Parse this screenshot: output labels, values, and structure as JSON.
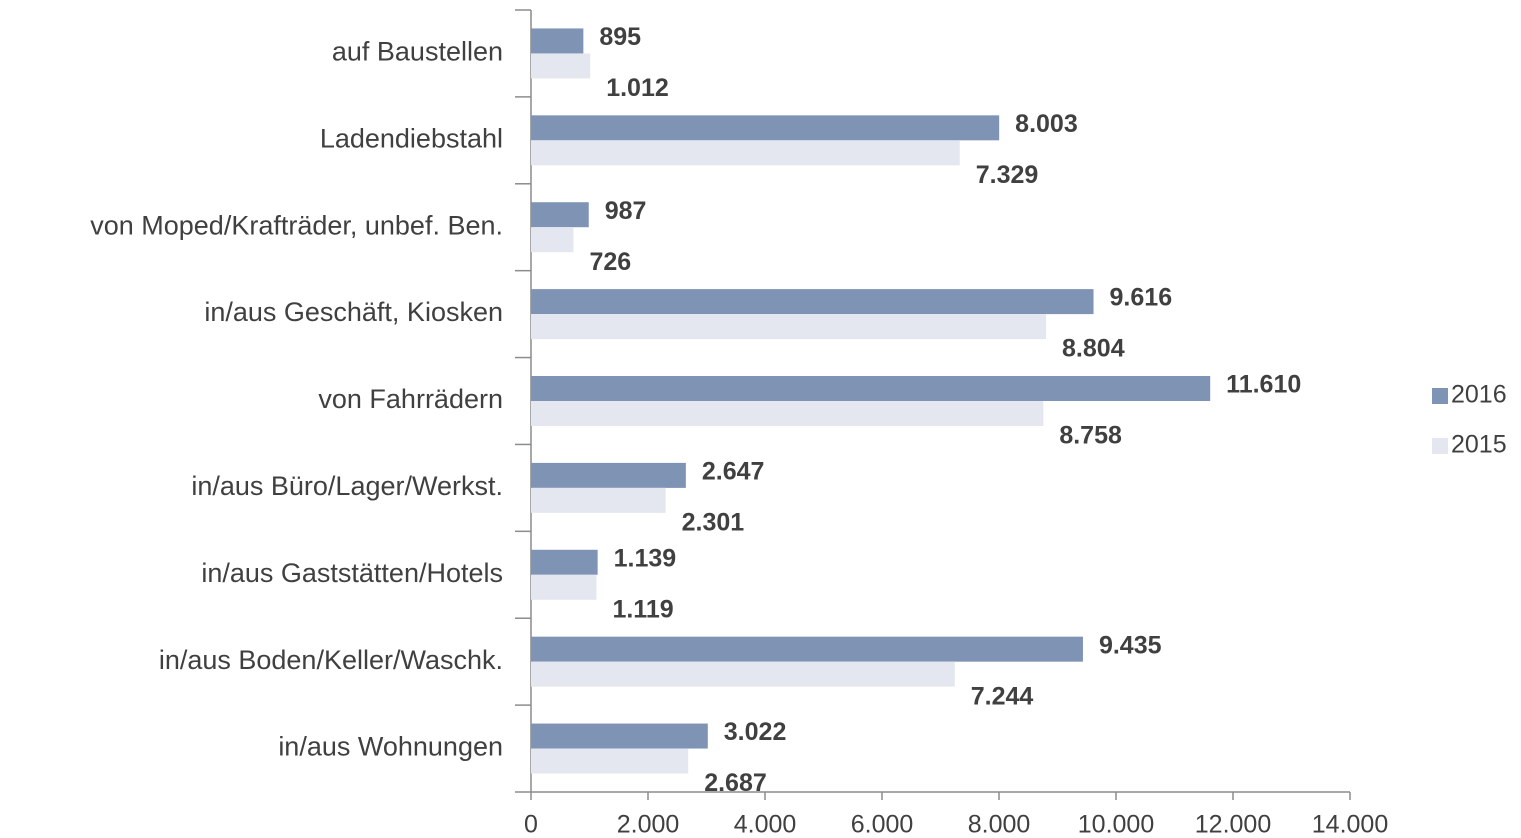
{
  "chart_data": {
    "type": "hbar",
    "categories": [
      "auf Baustellen",
      "Ladendiebstahl",
      "von Moped/Krafträder, unbef. Ben.",
      "in/aus Geschäft, Kiosken",
      "von Fahrrädern",
      "in/aus Büro/Lager/Werkst.",
      "in/aus Gaststätten/Hotels",
      "in/aus Boden/Keller/Waschk.",
      "in/aus Wohnungen"
    ],
    "series": [
      {
        "name": "2016",
        "color": "#7f93b5",
        "values": [
          895,
          8003,
          987,
          9616,
          11610,
          2647,
          1139,
          9435,
          3022
        ],
        "value_labels": [
          "895",
          "8.003",
          "987",
          "9.616",
          "11.610",
          "2.647",
          "1.139",
          "9.435",
          "3.022"
        ]
      },
      {
        "name": "2015",
        "color": "#e4e7f0",
        "values": [
          1012,
          7329,
          726,
          8804,
          8758,
          2301,
          1119,
          7244,
          2687
        ],
        "value_labels": [
          "1.012",
          "7.329",
          "726",
          "8.804",
          "8.758",
          "2.301",
          "1.119",
          "7.244",
          "2.687"
        ]
      }
    ],
    "xlim": [
      0,
      14000
    ],
    "xticks": [
      0,
      {
        "value": 2000,
        "label": "2.000"
      },
      {
        "value": 4000,
        "label": "4.000"
      },
      {
        "value": 6000,
        "label": "6.000"
      },
      {
        "value": 8000,
        "label": "8.000"
      },
      {
        "value": 10000,
        "label": "10.000"
      },
      {
        "value": 12000,
        "label": "12.000"
      },
      {
        "value": 14000,
        "label": "14.000"
      }
    ],
    "legend": "right"
  }
}
